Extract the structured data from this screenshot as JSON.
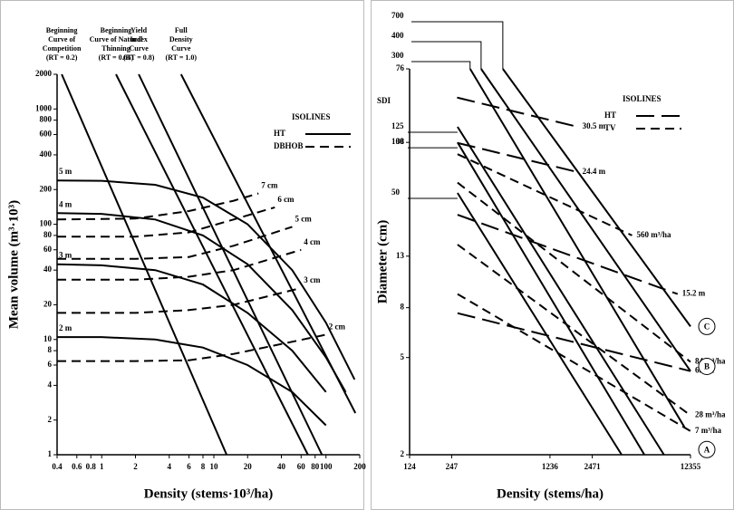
{
  "chart_data": [
    {
      "type": "line",
      "log_x": true,
      "log_y": true,
      "x_label": "Density (stems·10³/ha)",
      "y_label": "Mean volume (m³·10³)",
      "xlim": [
        0.4,
        200
      ],
      "ylim": [
        1,
        2000
      ],
      "xticks": [
        0.4,
        0.6,
        0.8,
        1,
        2,
        4,
        6,
        8,
        10,
        20,
        40,
        60,
        80,
        100,
        200
      ],
      "yticks": [
        1,
        2,
        4,
        6,
        8,
        10,
        20,
        40,
        60,
        80,
        100,
        200,
        400,
        600,
        800,
        1000,
        2000
      ],
      "legend": {
        "title": "ISOLINES",
        "loc": "upper right",
        "entries": [
          {
            "label": "HT",
            "dash": "solid"
          },
          {
            "label": "DBHOB",
            "dash": "dashed"
          }
        ]
      },
      "series": [
        {
          "label_lines": [
            "Beginning",
            "Curve of",
            "Competition",
            "(RT = 0.2)"
          ],
          "dash": "solid",
          "x": [
            0.44,
            13
          ],
          "values": [
            2000,
            1
          ]
        },
        {
          "label_lines": [
            "Beginning",
            "Curve of Natural",
            "Thinning",
            "(RT = 0.65)"
          ],
          "dash": "solid",
          "x": [
            1.34,
            69
          ],
          "values": [
            2000,
            1
          ]
        },
        {
          "label_lines": [
            "Yield",
            "Index",
            "Curve",
            "(RT = 0.8)"
          ],
          "dash": "solid",
          "x": [
            2.14,
            92
          ],
          "values": [
            2000,
            1
          ]
        },
        {
          "label_lines": [
            "Full",
            "Density",
            "Curve",
            "(RT = 1.0)"
          ],
          "dash": "solid",
          "x": [
            5.1,
            183
          ],
          "values": [
            2000,
            2.3
          ]
        },
        {
          "name": "5 m",
          "dash": "solid",
          "x": [
            0.4,
            1,
            3,
            8,
            20,
            50,
            100,
            180
          ],
          "values": [
            240,
            238,
            220,
            170,
            100,
            40,
            14,
            4.5
          ]
        },
        {
          "name": "4 m",
          "dash": "solid",
          "x": [
            0.4,
            1,
            3,
            8,
            20,
            50,
            100,
            150
          ],
          "values": [
            125,
            123,
            110,
            80,
            45,
            18,
            7,
            3.5
          ]
        },
        {
          "name": "3 m",
          "dash": "solid",
          "x": [
            0.4,
            1,
            3,
            8,
            20,
            50,
            100
          ],
          "values": [
            45,
            44,
            40,
            30,
            17,
            8,
            3.5
          ]
        },
        {
          "name": "2 m",
          "dash": "solid",
          "x": [
            0.4,
            1,
            3,
            8,
            20,
            50,
            100
          ],
          "values": [
            10.5,
            10.5,
            10,
            8.5,
            6,
            3.5,
            1.8
          ]
        },
        {
          "name": "7 cm",
          "dash": "dashed",
          "x": [
            0.4,
            2,
            6,
            15,
            25
          ],
          "values": [
            110,
            112,
            130,
            160,
            185
          ]
        },
        {
          "name": "6 cm",
          "dash": "dashed",
          "x": [
            0.4,
            2,
            6,
            15,
            35
          ],
          "values": [
            78,
            78,
            85,
            110,
            140
          ]
        },
        {
          "name": "5 cm",
          "dash": "dashed",
          "x": [
            0.4,
            2,
            6,
            15,
            50
          ],
          "values": [
            50,
            50,
            52,
            65,
            95
          ]
        },
        {
          "name": "4 cm",
          "dash": "dashed",
          "x": [
            0.4,
            2,
            6,
            15,
            60
          ],
          "values": [
            33,
            33,
            35,
            40,
            60
          ]
        },
        {
          "name": "3 cm",
          "dash": "dashed",
          "x": [
            0.4,
            2,
            6,
            15,
            60
          ],
          "values": [
            17,
            17,
            18,
            20,
            28
          ]
        },
        {
          "name": "2 cm",
          "dash": "dashed",
          "x": [
            0.4,
            2,
            6,
            15,
            100
          ],
          "values": [
            6.5,
            6.5,
            6.6,
            7.5,
            11
          ]
        }
      ]
    },
    {
      "type": "line",
      "log_x": true,
      "log_y": true,
      "x_label": "Density (stems/ha)",
      "y_label": "Diameter (cm)",
      "sdi_label": "SDI",
      "xlim": [
        124,
        12355
      ],
      "ylim": [
        2,
        76
      ],
      "xticks": [
        124,
        247,
        1236,
        2471,
        12355
      ],
      "yticks": [
        2,
        5,
        8,
        13,
        38,
        76
      ],
      "legend": {
        "title": "ISOLINES",
        "loc": "upper right",
        "entries": [
          {
            "label": "HT",
            "dash": "long-dashed"
          },
          {
            "label": "TV",
            "dash": "dashed"
          }
        ]
      },
      "series": [
        {
          "name": "700",
          "dash": "solid",
          "x": [
            571,
            12355
          ],
          "values": [
            76,
            6.7
          ]
        },
        {
          "name": "400",
          "dash": "solid",
          "x": [
            400,
            12355
          ],
          "values": [
            76,
            4.4
          ]
        },
        {
          "name": "300",
          "dash": "solid",
          "x": [
            334,
            11176
          ],
          "values": [
            76,
            2.6
          ]
        },
        {
          "name": "125",
          "dash": "solid",
          "x": [
            272,
            8000
          ],
          "values": [
            44,
            2
          ]
        },
        {
          "name": "100",
          "dash": "solid",
          "x": [
            272,
            5800
          ],
          "values": [
            38,
            2
          ]
        },
        {
          "name": "50",
          "dash": "solid",
          "x": [
            272,
            4000
          ],
          "values": [
            23.6,
            2
          ]
        },
        {
          "name": "30.5 m",
          "dash": "long-dashed",
          "x": [
            270,
            1950
          ],
          "values": [
            58,
            44
          ]
        },
        {
          "name": "24.4 m",
          "dash": "long-dashed",
          "x": [
            272,
            1950
          ],
          "values": [
            37.8,
            28.7
          ]
        },
        {
          "name": "15.2 m",
          "dash": "long-dashed",
          "x": [
            272,
            10000
          ],
          "values": [
            19.2,
            9.1
          ]
        },
        {
          "name": "6.1 m",
          "dash": "long-dashed",
          "x": [
            272,
            12355
          ],
          "values": [
            7.6,
            4.4
          ]
        },
        {
          "name": "560 m³/ha",
          "dash": "dashed",
          "x": [
            272,
            4743
          ],
          "values": [
            34,
            15.8
          ]
        },
        {
          "name": "84 m³/ha",
          "dash": "dashed",
          "x": [
            272,
            12355
          ],
          "values": [
            26,
            4.8
          ]
        },
        {
          "name": "28 m³/ha",
          "dash": "dashed",
          "x": [
            272,
            12355
          ],
          "values": [
            14.5,
            2.9
          ]
        },
        {
          "name": "7 m³/ha",
          "dash": "dashed",
          "x": [
            272,
            12355
          ],
          "values": [
            9.1,
            2.5
          ]
        }
      ],
      "points": [
        {
          "label": "C",
          "x": 12355,
          "y": 6.7
        },
        {
          "label": "B",
          "x": 12355,
          "y": 4.6
        },
        {
          "label": "A",
          "x": 12355,
          "y": 2.1
        }
      ]
    }
  ]
}
